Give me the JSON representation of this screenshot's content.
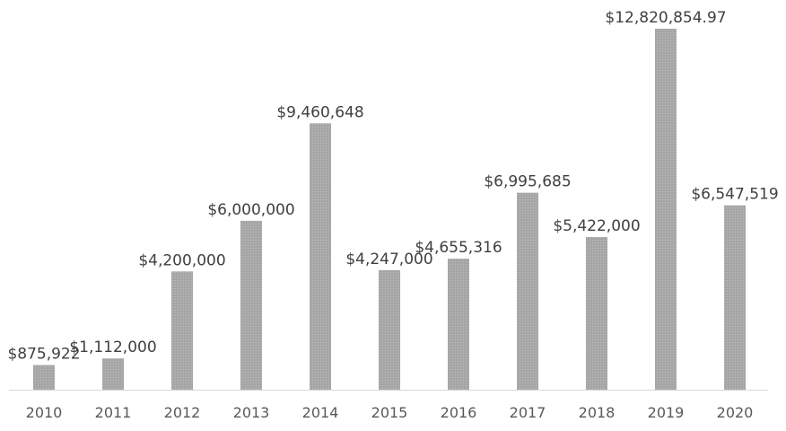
{
  "chart_data": {
    "type": "bar",
    "categories": [
      "2010",
      "2011",
      "2012",
      "2013",
      "2014",
      "2015",
      "2016",
      "2017",
      "2018",
      "2019",
      "2020"
    ],
    "values": [
      875922,
      1112000,
      4200000,
      6000000,
      9460648,
      4247000,
      4655316,
      6995685,
      5422000,
      12820854.97,
      6547519
    ],
    "data_labels": [
      "$875,922",
      "$1,112,000",
      "$4,200,000",
      "$6,000,000",
      "$9,460,648",
      "$4,247,000",
      "$4,655,316",
      "$6,995,685",
      "$5,422,000",
      "$12,820,854.97",
      "$6,547,519"
    ],
    "title": "",
    "xlabel": "",
    "ylabel": "",
    "ylim": [
      0,
      12820854.97
    ],
    "grid": false,
    "legend": "none",
    "colors": {
      "bar": "#a6a6a6",
      "bar_stripe": "#bfbfbf",
      "label": "#404040",
      "tick": "#595959",
      "axis": "#d9d9d9"
    }
  }
}
